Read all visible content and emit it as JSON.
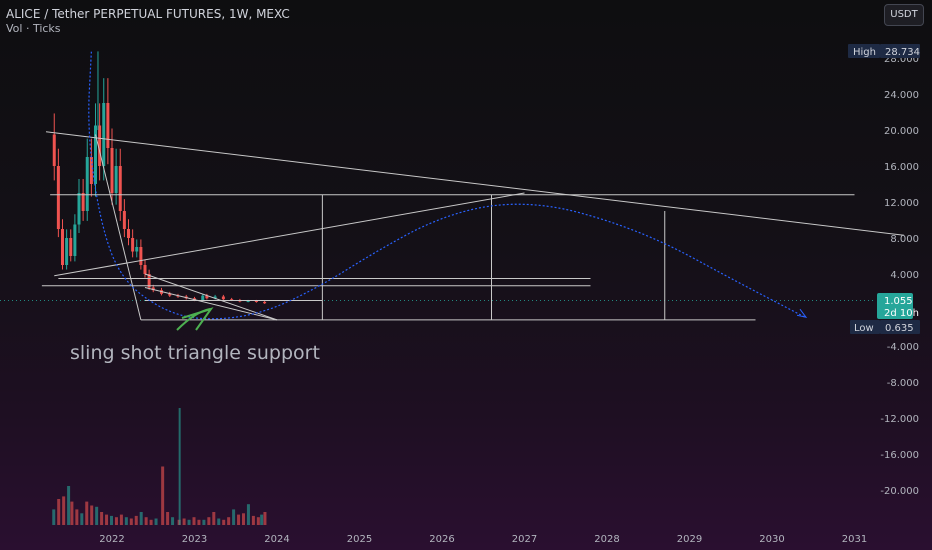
{
  "header": {
    "title": "ALICE / Tether PERPETUAL FUTURES, 1W, MEXC",
    "subtitle": "Vol · Ticks",
    "currency_button": "USDT"
  },
  "badges": {
    "high_label": "High",
    "high_value": "28.734",
    "low_label": "Low",
    "low_value": "0.635",
    "price_value": "1.055",
    "countdown": "2d 10h"
  },
  "annotation": "sling shot triangle support",
  "colors": {
    "up": "#26a69a",
    "down": "#ef5350",
    "trendline": "#c8c8c8",
    "curve": "#2962ff",
    "arrow": "#4caf50",
    "price_badge": "#26a69a",
    "badge_bg": "#1e2a44"
  },
  "chart_data": {
    "type": "candlestick",
    "ytick_labels": [
      "28.000",
      "24.000",
      "20.000",
      "16.000",
      "12.000",
      "8.000",
      "4.000",
      "-4.000",
      "-8.000",
      "-12.000",
      "-16.000",
      "-20.000"
    ],
    "ytick_values": [
      28,
      24,
      20,
      16,
      12,
      8,
      4,
      -4,
      -8,
      -12,
      -16,
      -20
    ],
    "xtick_labels": [
      "2022",
      "2023",
      "2024",
      "2025",
      "2026",
      "2027",
      "2028",
      "2029",
      "2030",
      "2031"
    ],
    "xtick_values": [
      2022,
      2023,
      2024,
      2025,
      2026,
      2027,
      2028,
      2029,
      2030,
      2031
    ],
    "ylim": [
      -22,
      30
    ],
    "xlim": [
      2021.0,
      2031.6
    ],
    "high": 28.734,
    "low": 0.635,
    "last_price": 1.055,
    "price_path": [
      [
        2021.25,
        19.5
      ],
      [
        2021.3,
        16.0
      ],
      [
        2021.35,
        9.0
      ],
      [
        2021.4,
        5.0
      ],
      [
        2021.45,
        8.0
      ],
      [
        2021.5,
        6.0
      ],
      [
        2021.55,
        9.5
      ],
      [
        2021.6,
        13.0
      ],
      [
        2021.65,
        11.0
      ],
      [
        2021.7,
        17.0
      ],
      [
        2021.75,
        14.0
      ],
      [
        2021.8,
        20.5
      ],
      [
        2021.85,
        16.0
      ],
      [
        2021.9,
        23.0
      ],
      [
        2021.95,
        18.0
      ],
      [
        2022.0,
        13.0
      ],
      [
        2022.05,
        16.0
      ],
      [
        2022.1,
        11.0
      ],
      [
        2022.15,
        9.0
      ],
      [
        2022.2,
        8.0
      ],
      [
        2022.25,
        6.5
      ],
      [
        2022.3,
        7.0
      ],
      [
        2022.35,
        5.0
      ],
      [
        2022.4,
        4.0
      ],
      [
        2022.45,
        2.5
      ],
      [
        2022.5,
        2.2
      ],
      [
        2022.6,
        1.8
      ],
      [
        2022.7,
        1.6
      ],
      [
        2022.8,
        1.5
      ],
      [
        2022.9,
        1.3
      ],
      [
        2023.0,
        1.1
      ],
      [
        2023.1,
        1.6
      ],
      [
        2023.15,
        1.3
      ],
      [
        2023.25,
        1.5
      ],
      [
        2023.35,
        1.2
      ],
      [
        2023.45,
        1.1
      ],
      [
        2023.55,
        0.95
      ],
      [
        2023.65,
        1.0
      ],
      [
        2023.75,
        0.9
      ],
      [
        2023.85,
        0.75
      ]
    ],
    "volume": [
      [
        2021.3,
        0.12
      ],
      [
        2021.36,
        0.2
      ],
      [
        2021.42,
        0.22
      ],
      [
        2021.48,
        0.3
      ],
      [
        2021.52,
        0.18
      ],
      [
        2021.58,
        0.12
      ],
      [
        2021.64,
        0.09
      ],
      [
        2021.7,
        0.18
      ],
      [
        2021.76,
        0.15
      ],
      [
        2021.82,
        0.14
      ],
      [
        2021.88,
        0.1
      ],
      [
        2021.94,
        0.08
      ],
      [
        2022.0,
        0.07
      ],
      [
        2022.06,
        0.06
      ],
      [
        2022.12,
        0.08
      ],
      [
        2022.18,
        0.06
      ],
      [
        2022.24,
        0.05
      ],
      [
        2022.3,
        0.07
      ],
      [
        2022.36,
        0.1
      ],
      [
        2022.42,
        0.06
      ],
      [
        2022.48,
        0.04
      ],
      [
        2022.54,
        0.05
      ],
      [
        2022.62,
        0.45
      ],
      [
        2022.68,
        0.1
      ],
      [
        2022.74,
        0.06
      ],
      [
        2022.82,
        0.04
      ],
      [
        2022.88,
        0.05
      ],
      [
        2022.94,
        0.04
      ],
      [
        2023.0,
        0.06
      ],
      [
        2023.06,
        0.04
      ],
      [
        2023.12,
        0.04
      ],
      [
        2023.18,
        0.06
      ],
      [
        2023.24,
        0.1
      ],
      [
        2023.3,
        0.05
      ],
      [
        2023.36,
        0.04
      ],
      [
        2023.42,
        0.06
      ],
      [
        2023.48,
        0.12
      ],
      [
        2023.54,
        0.08
      ],
      [
        2023.6,
        0.09
      ],
      [
        2023.66,
        0.16
      ],
      [
        2023.72,
        0.07
      ],
      [
        2023.78,
        0.06
      ],
      [
        2023.82,
        0.08
      ],
      [
        2023.86,
        0.1
      ]
    ],
    "volume_axis_max": 1.0,
    "volume_spikes": [
      [
        2022.82,
        0.9
      ]
    ],
    "horizontal_levels": [
      {
        "y": 12.8,
        "x_start": 2021.25,
        "x_end": 2031.0
      },
      {
        "y": 3.5,
        "x_start": 2021.35,
        "x_end": 2027.8
      },
      {
        "y": 2.7,
        "x_start": 2021.15,
        "x_end": 2027.8
      },
      {
        "y": 1.05,
        "x_start": 2022.4,
        "x_end": 2024.55
      },
      {
        "y": -1.1,
        "x_start": 2022.35,
        "x_end": 2029.8
      }
    ],
    "trendlines": [
      {
        "from": [
          2021.2,
          19.8
        ],
        "to": [
          2031.6,
          8.3
        ]
      },
      {
        "from": [
          2021.3,
          3.8
        ],
        "to": [
          2027.0,
          13.0
        ]
      },
      {
        "from": [
          2021.8,
          19.5
        ],
        "to": [
          2022.35,
          -1.1
        ]
      },
      {
        "from": [
          2022.4,
          4.0
        ],
        "to": [
          2024.0,
          -1.1
        ]
      },
      {
        "from": [
          2022.4,
          2.5
        ],
        "to": [
          2024.0,
          -1.1
        ]
      }
    ],
    "vertical_lines": [
      {
        "x": 2024.55,
        "y_top": 12.8,
        "y_bottom": -1.1
      },
      {
        "x": 2026.6,
        "y_top": 12.8,
        "y_bottom": -1.1
      },
      {
        "x": 2028.7,
        "y_top": 11.0,
        "y_bottom": -1.1
      }
    ],
    "projection_curve": [
      [
        2021.75,
        28.7
      ],
      [
        2021.7,
        20.0
      ],
      [
        2021.85,
        10.0
      ],
      [
        2022.1,
        3.5
      ],
      [
        2022.6,
        0.0
      ],
      [
        2023.1,
        -1.2
      ],
      [
        2023.8,
        -0.5
      ],
      [
        2024.5,
        2.5
      ],
      [
        2025.2,
        6.5
      ],
      [
        2025.9,
        10.0
      ],
      [
        2026.6,
        11.8
      ],
      [
        2027.3,
        11.7
      ],
      [
        2028.0,
        10.0
      ],
      [
        2028.7,
        7.5
      ],
      [
        2029.5,
        3.5
      ],
      [
        2030.4,
        -0.8
      ]
    ]
  }
}
